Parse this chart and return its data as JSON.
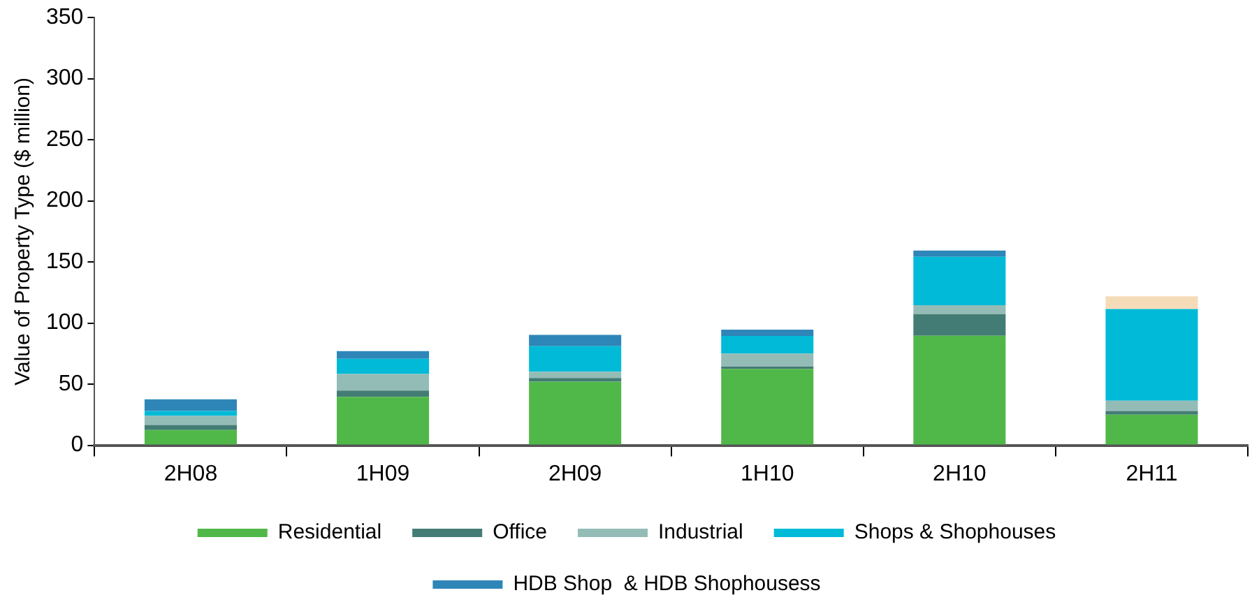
{
  "chart_data": {
    "type": "bar",
    "stacked": true,
    "ylabel": "Value of Property Type ($ million)",
    "categories": [
      "2H08",
      "1H09",
      "2H09",
      "1H10",
      "2H10",
      "2H11"
    ],
    "series": [
      {
        "name": "Residential",
        "color": "#50b848",
        "values": [
          12.5,
          39.6,
          52,
          62.5,
          89.6,
          25
        ]
      },
      {
        "name": "Office",
        "color": "#437c74",
        "values": [
          4.2,
          5.2,
          3,
          2,
          17.7,
          3
        ]
      },
      {
        "name": "Industrial",
        "color": "#94bcb6",
        "values": [
          7.3,
          13.5,
          5.2,
          10.5,
          7.3,
          8.5
        ]
      },
      {
        "name": "Shops & Shophouses",
        "color": "#00bad8",
        "values": [
          4,
          12.5,
          20.8,
          14.5,
          39.6,
          75
        ]
      },
      {
        "name": "HDB Shop  & HDB Shophousess",
        "color": "#2e86b8",
        "values": [
          9.7,
          6.2,
          9.4,
          5.2,
          5.2,
          0
        ]
      },
      {
        "color": "#f5dcb8",
        "values": [
          0,
          0,
          0,
          0,
          0,
          10.5
        ]
      }
    ],
    "ylim": [
      0,
      350
    ],
    "yticks": [
      0,
      50,
      100,
      150,
      200,
      250,
      300,
      350
    ],
    "grid": false,
    "legend": "bottom"
  }
}
